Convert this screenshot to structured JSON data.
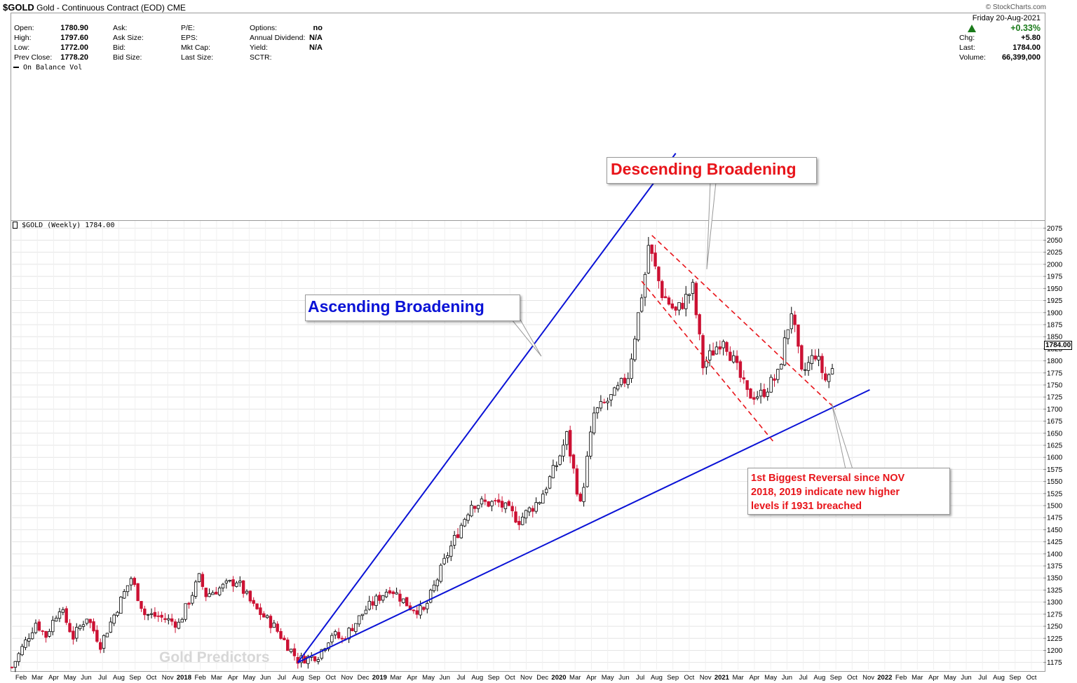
{
  "header": {
    "symbol": "$GOLD",
    "title": "Gold - Continuous Contract (EOD)",
    "exchange": "CME",
    "source": "© StockCharts.com"
  },
  "quote": {
    "col1": [
      {
        "label": "Open:",
        "value": "1780.90"
      },
      {
        "label": "High:",
        "value": "1797.60"
      },
      {
        "label": "Low:",
        "value": "1772.00"
      },
      {
        "label": "Prev Close:",
        "value": "1778.20"
      }
    ],
    "col2": [
      {
        "label": "Ask:",
        "value": ""
      },
      {
        "label": "Ask Size:",
        "value": ""
      },
      {
        "label": "Bid:",
        "value": ""
      },
      {
        "label": "Bid Size:",
        "value": ""
      }
    ],
    "col3": [
      {
        "label": "P/E:",
        "value": ""
      },
      {
        "label": "EPS:",
        "value": ""
      },
      {
        "label": "Mkt Cap:",
        "value": ""
      },
      {
        "label": "Last Size:",
        "value": ""
      }
    ],
    "col4": [
      {
        "label": "Options:",
        "value": "no"
      },
      {
        "label": "Annual Dividend:",
        "value": "N/A"
      },
      {
        "label": "Yield:",
        "value": "N/A"
      },
      {
        "label": "SCTR:",
        "value": ""
      }
    ],
    "right": {
      "date": "Friday  20-Aug-2021",
      "pct": "+0.33%",
      "rows": [
        {
          "label": "Chg:",
          "value": "+5.80"
        },
        {
          "label": "Last:",
          "value": "1784.00"
        },
        {
          "label": "Volume:",
          "value": "66,399,000"
        }
      ]
    }
  },
  "indicator_legend": "On Balance Vol",
  "price_legend": "$GOLD (Weekly) 1784.00",
  "last_price_tag": "1784.00",
  "watermark": "Gold Predictors",
  "annotations": {
    "descending": "Descending Broadening",
    "ascending": "Ascending Broadening",
    "reversal": [
      "1st Biggest Reversal since NOV",
      "2018, 2019 indicate new higher",
      "levels if 1931 breached"
    ]
  },
  "colors": {
    "up": "#000000",
    "down": "#cc1133",
    "ascending": "#0a12d6",
    "descending": "#e8141a",
    "grid": "#e4e4e4"
  },
  "chart_data": {
    "type": "candlestick",
    "title": "$GOLD (Weekly) 1784.00",
    "frequency": "weekly",
    "ylim": [
      1160,
      2090
    ],
    "y_ticks": [
      1175,
      1200,
      1225,
      1250,
      1275,
      1300,
      1325,
      1350,
      1375,
      1400,
      1425,
      1450,
      1475,
      1500,
      1525,
      1550,
      1575,
      1600,
      1625,
      1650,
      1675,
      1700,
      1725,
      1750,
      1775,
      1800,
      1825,
      1850,
      1875,
      1900,
      1925,
      1950,
      1975,
      2000,
      2025,
      2050,
      2075
    ],
    "x_tick_labels": [
      "Feb",
      "Mar",
      "Apr",
      "May",
      "Jun",
      "Jul",
      "Aug",
      "Sep",
      "Oct",
      "Nov",
      "2018",
      "Feb",
      "Mar",
      "Apr",
      "May",
      "Jun",
      "Jul",
      "Aug",
      "Sep",
      "Oct",
      "Nov",
      "Dec",
      "2019",
      "Mar",
      "Apr",
      "May",
      "Jun",
      "Jul",
      "Aug",
      "Sep",
      "Oct",
      "Nov",
      "Dec",
      "2020",
      "Mar",
      "Apr",
      "May",
      "Jun",
      "Jul",
      "Aug",
      "Sep",
      "Oct",
      "Nov",
      "2021",
      "Mar",
      "Apr",
      "May",
      "Jun",
      "Jul",
      "Aug",
      "Sep",
      "Oct",
      "Nov",
      "2022",
      "Feb",
      "Mar",
      "Apr",
      "May",
      "Jun",
      "Jul",
      "Aug",
      "Sep",
      "Oct"
    ],
    "close_path": [
      [
        "2017-01-06",
        1165
      ],
      [
        "2017-02-24",
        1258
      ],
      [
        "2017-03-17",
        1230
      ],
      [
        "2017-04-14",
        1290
      ],
      [
        "2017-05-12",
        1228
      ],
      [
        "2017-06-09",
        1270
      ],
      [
        "2017-07-07",
        1212
      ],
      [
        "2017-09-08",
        1350
      ],
      [
        "2017-10-06",
        1275
      ],
      [
        "2017-11-03",
        1270
      ],
      [
        "2017-12-15",
        1255
      ],
      [
        "2018-01-26",
        1350
      ],
      [
        "2018-02-09",
        1315
      ],
      [
        "2018-04-13",
        1345
      ],
      [
        "2018-05-18",
        1290
      ],
      [
        "2018-06-29",
        1250
      ],
      [
        "2018-08-17",
        1180
      ],
      [
        "2018-09-28",
        1190
      ],
      [
        "2018-10-26",
        1235
      ],
      [
        "2018-11-16",
        1222
      ],
      [
        "2019-01-04",
        1285
      ],
      [
        "2019-02-22",
        1330
      ],
      [
        "2019-04-05",
        1290
      ],
      [
        "2019-05-03",
        1280
      ],
      [
        "2019-06-21",
        1400
      ],
      [
        "2019-08-09",
        1505
      ],
      [
        "2019-10-04",
        1505
      ],
      [
        "2019-11-15",
        1470
      ],
      [
        "2019-12-27",
        1512
      ],
      [
        "2020-01-31",
        1585
      ],
      [
        "2020-02-21",
        1645
      ],
      [
        "2020-03-20",
        1500
      ],
      [
        "2020-04-17",
        1690
      ],
      [
        "2020-05-29",
        1730
      ],
      [
        "2020-06-26",
        1770
      ],
      [
        "2020-07-31",
        1980
      ],
      [
        "2020-08-07",
        2040
      ],
      [
        "2020-09-04",
        1940
      ],
      [
        "2020-10-02",
        1900
      ],
      [
        "2020-11-06",
        1950
      ],
      [
        "2020-11-27",
        1790
      ],
      [
        "2021-01-08",
        1850
      ],
      [
        "2021-02-26",
        1730
      ],
      [
        "2021-03-26",
        1730
      ],
      [
        "2021-04-30",
        1770
      ],
      [
        "2021-05-28",
        1905
      ],
      [
        "2021-06-18",
        1770
      ],
      [
        "2021-07-16",
        1815
      ],
      [
        "2021-08-06",
        1760
      ],
      [
        "2021-08-20",
        1784
      ]
    ],
    "trendlines": [
      {
        "label": "Ascending Broadening",
        "color": "#0a12d6",
        "style": "solid",
        "from": [
          "2018-08-17",
          1175
        ],
        "to": [
          "2020-08-07",
          2080
        ],
        "extend_to": [
          "2020-10-02",
          2230
        ]
      },
      {
        "label": "Ascending Broadening",
        "color": "#0a12d6",
        "style": "solid",
        "from": [
          "2018-08-17",
          1175
        ],
        "to": [
          "2021-08-13",
          1675
        ],
        "extend_to": [
          "2021-11-05",
          1740
        ]
      },
      {
        "label": "Descending Broadening",
        "color": "#e8141a",
        "style": "dashed",
        "from": [
          "2020-08-14",
          2060
        ],
        "to": [
          "2021-08-27",
          1700
        ]
      },
      {
        "label": "Descending Broadening",
        "color": "#e8141a",
        "style": "dashed",
        "from": [
          "2020-07-24",
          1965
        ],
        "to": [
          "2021-04-23",
          1630
        ]
      }
    ]
  }
}
